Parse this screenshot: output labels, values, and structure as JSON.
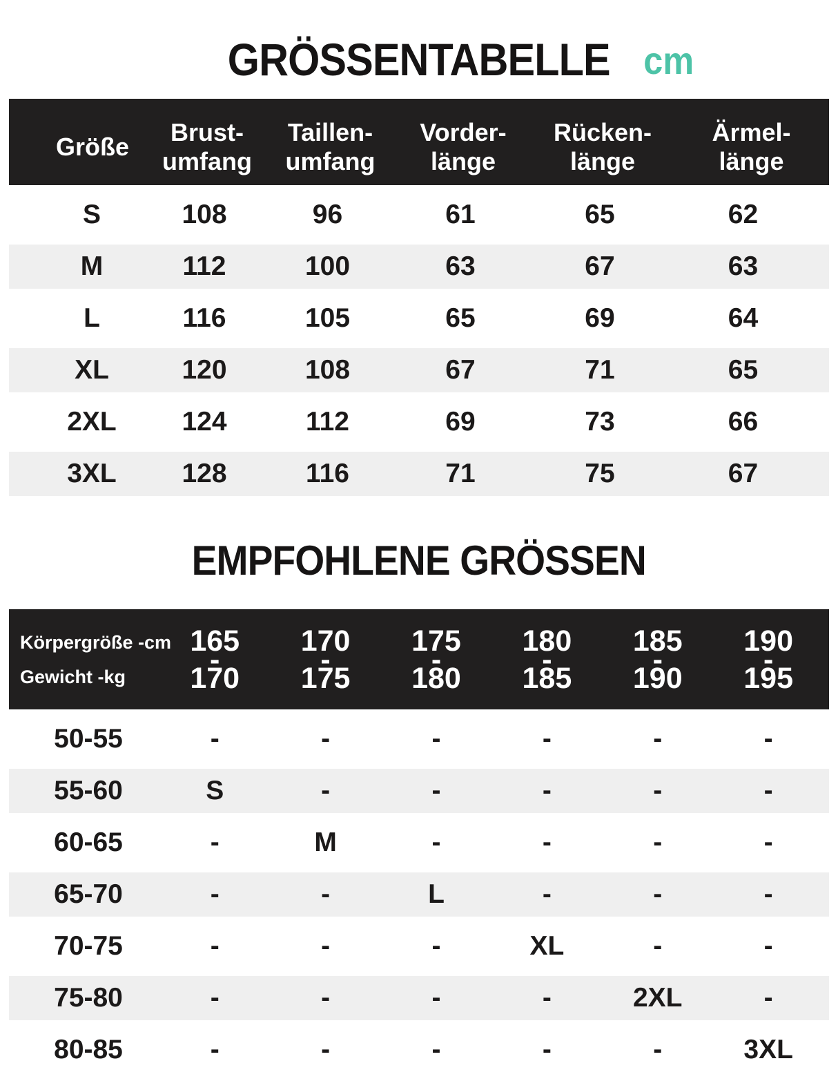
{
  "page": {
    "title": "GRÖSSENTABELLE",
    "unit": "cm",
    "subtitle": "EMPFOHLENE GRÖSSEN"
  },
  "colors": {
    "accent_teal": "#4dc3a7",
    "band_black": "#211f1f",
    "stripe_gray": "#efefef"
  },
  "size_table": {
    "headers": [
      {
        "line1": "Größe",
        "line2": ""
      },
      {
        "line1": "Brust-",
        "line2": "umfang"
      },
      {
        "line1": "Taillen-",
        "line2": "umfang"
      },
      {
        "line1": "Vorder-",
        "line2": "länge"
      },
      {
        "line1": "Rücken-",
        "line2": "länge"
      },
      {
        "line1": "Ärmel-",
        "line2": "länge"
      }
    ],
    "rows": [
      {
        "size": "S",
        "values": [
          "108",
          "96",
          "61",
          "65",
          "62"
        ]
      },
      {
        "size": "M",
        "values": [
          "112",
          "100",
          "63",
          "67",
          "63"
        ]
      },
      {
        "size": "L",
        "values": [
          "116",
          "105",
          "65",
          "69",
          "64"
        ]
      },
      {
        "size": "XL",
        "values": [
          "120",
          "108",
          "67",
          "71",
          "65"
        ]
      },
      {
        "size": "2XL",
        "values": [
          "124",
          "112",
          "69",
          "73",
          "66"
        ]
      },
      {
        "size": "3XL",
        "values": [
          "128",
          "116",
          "71",
          "75",
          "67"
        ]
      }
    ]
  },
  "recommended_table": {
    "header": {
      "height_label": "Körpergröße -cm",
      "weight_label": "Gewicht -kg",
      "separator": "-",
      "ranges": [
        {
          "from": "165",
          "to": "170"
        },
        {
          "from": "170",
          "to": "175"
        },
        {
          "from": "175",
          "to": "180"
        },
        {
          "from": "180",
          "to": "185"
        },
        {
          "from": "185",
          "to": "190"
        },
        {
          "from": "190",
          "to": "195"
        }
      ]
    },
    "rows": [
      {
        "weight": "50-55",
        "cells": [
          "-",
          "-",
          "-",
          "-",
          "-",
          "-"
        ]
      },
      {
        "weight": "55-60",
        "cells": [
          "S",
          "-",
          "-",
          "-",
          "-",
          "-"
        ]
      },
      {
        "weight": "60-65",
        "cells": [
          "-",
          "M",
          "-",
          "-",
          "-",
          "-"
        ]
      },
      {
        "weight": "65-70",
        "cells": [
          "-",
          "-",
          "L",
          "-",
          "-",
          "-"
        ]
      },
      {
        "weight": "70-75",
        "cells": [
          "-",
          "-",
          "-",
          "XL",
          "-",
          "-"
        ]
      },
      {
        "weight": "75-80",
        "cells": [
          "-",
          "-",
          "-",
          "-",
          "2XL",
          "-"
        ]
      },
      {
        "weight": "80-85",
        "cells": [
          "-",
          "-",
          "-",
          "-",
          "-",
          "3XL"
        ]
      }
    ]
  }
}
